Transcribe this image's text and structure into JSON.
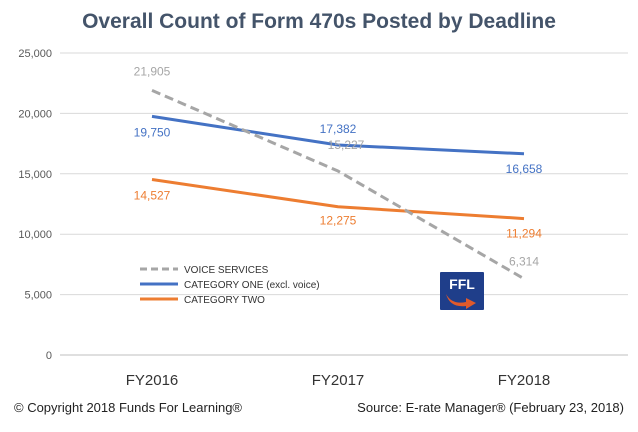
{
  "chart_data": {
    "type": "line",
    "title": "Overall Count of Form 470s Posted by Deadline",
    "categories": [
      "FY2016",
      "FY2017",
      "FY2018"
    ],
    "ylim": [
      0,
      25000
    ],
    "yticks": [
      0,
      5000,
      10000,
      15000,
      20000,
      25000
    ],
    "ytick_labels": [
      "0",
      "5,000",
      "10,000",
      "15,000",
      "20,000",
      "25,000"
    ],
    "grid": true,
    "legend_position": "bottom-left",
    "series": [
      {
        "name": "VOICE SERVICES",
        "values": [
          21905,
          15227,
          6314
        ],
        "labels": [
          "21,905",
          "15,227",
          "6,314"
        ],
        "color": "#a6a6a6",
        "dash": true
      },
      {
        "name": "CATEGORY ONE (excl. voice)",
        "values": [
          19750,
          17382,
          16658
        ],
        "labels": [
          "19,750",
          "17,382",
          "16,658"
        ],
        "color": "#4472c4",
        "dash": false
      },
      {
        "name": "CATEGORY TWO",
        "values": [
          14527,
          12275,
          11294
        ],
        "labels": [
          "14,527",
          "12,275",
          "11,294"
        ],
        "color": "#ed7d31",
        "dash": false
      }
    ]
  },
  "logo": {
    "text": "FFL",
    "bg_color": "#1f3e8a",
    "arrow_color": "#e05a2b"
  },
  "footer": {
    "copyright": "© Copyright 2018 Funds For Learning®",
    "source": "Source: E-rate Manager® (February 23, 2018)"
  }
}
